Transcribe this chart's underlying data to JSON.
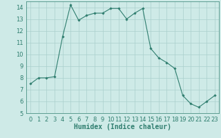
{
  "x": [
    0,
    1,
    2,
    3,
    4,
    5,
    6,
    7,
    8,
    9,
    10,
    11,
    12,
    13,
    14,
    15,
    16,
    17,
    18,
    19,
    20,
    21,
    22,
    23
  ],
  "y": [
    7.5,
    8.0,
    8.0,
    8.1,
    11.5,
    14.2,
    12.9,
    13.3,
    13.5,
    13.5,
    13.9,
    13.9,
    13.0,
    13.5,
    13.9,
    10.5,
    9.7,
    9.3,
    8.8,
    6.5,
    5.8,
    5.5,
    6.0,
    6.5
  ],
  "line_color": "#2e7d6e",
  "marker": "D",
  "marker_size": 1.8,
  "bg_color": "#ceeae7",
  "grid_color": "#aacfcc",
  "xlabel": "Humidex (Indice chaleur)",
  "xlabel_fontsize": 7,
  "tick_fontsize": 6,
  "ylim": [
    5,
    14.5
  ],
  "yticks": [
    5,
    6,
    7,
    8,
    9,
    10,
    11,
    12,
    13,
    14
  ],
  "xlim": [
    -0.5,
    23.5
  ],
  "xticks": [
    0,
    1,
    2,
    3,
    4,
    5,
    6,
    7,
    8,
    9,
    10,
    11,
    12,
    13,
    14,
    15,
    16,
    17,
    18,
    19,
    20,
    21,
    22,
    23
  ]
}
